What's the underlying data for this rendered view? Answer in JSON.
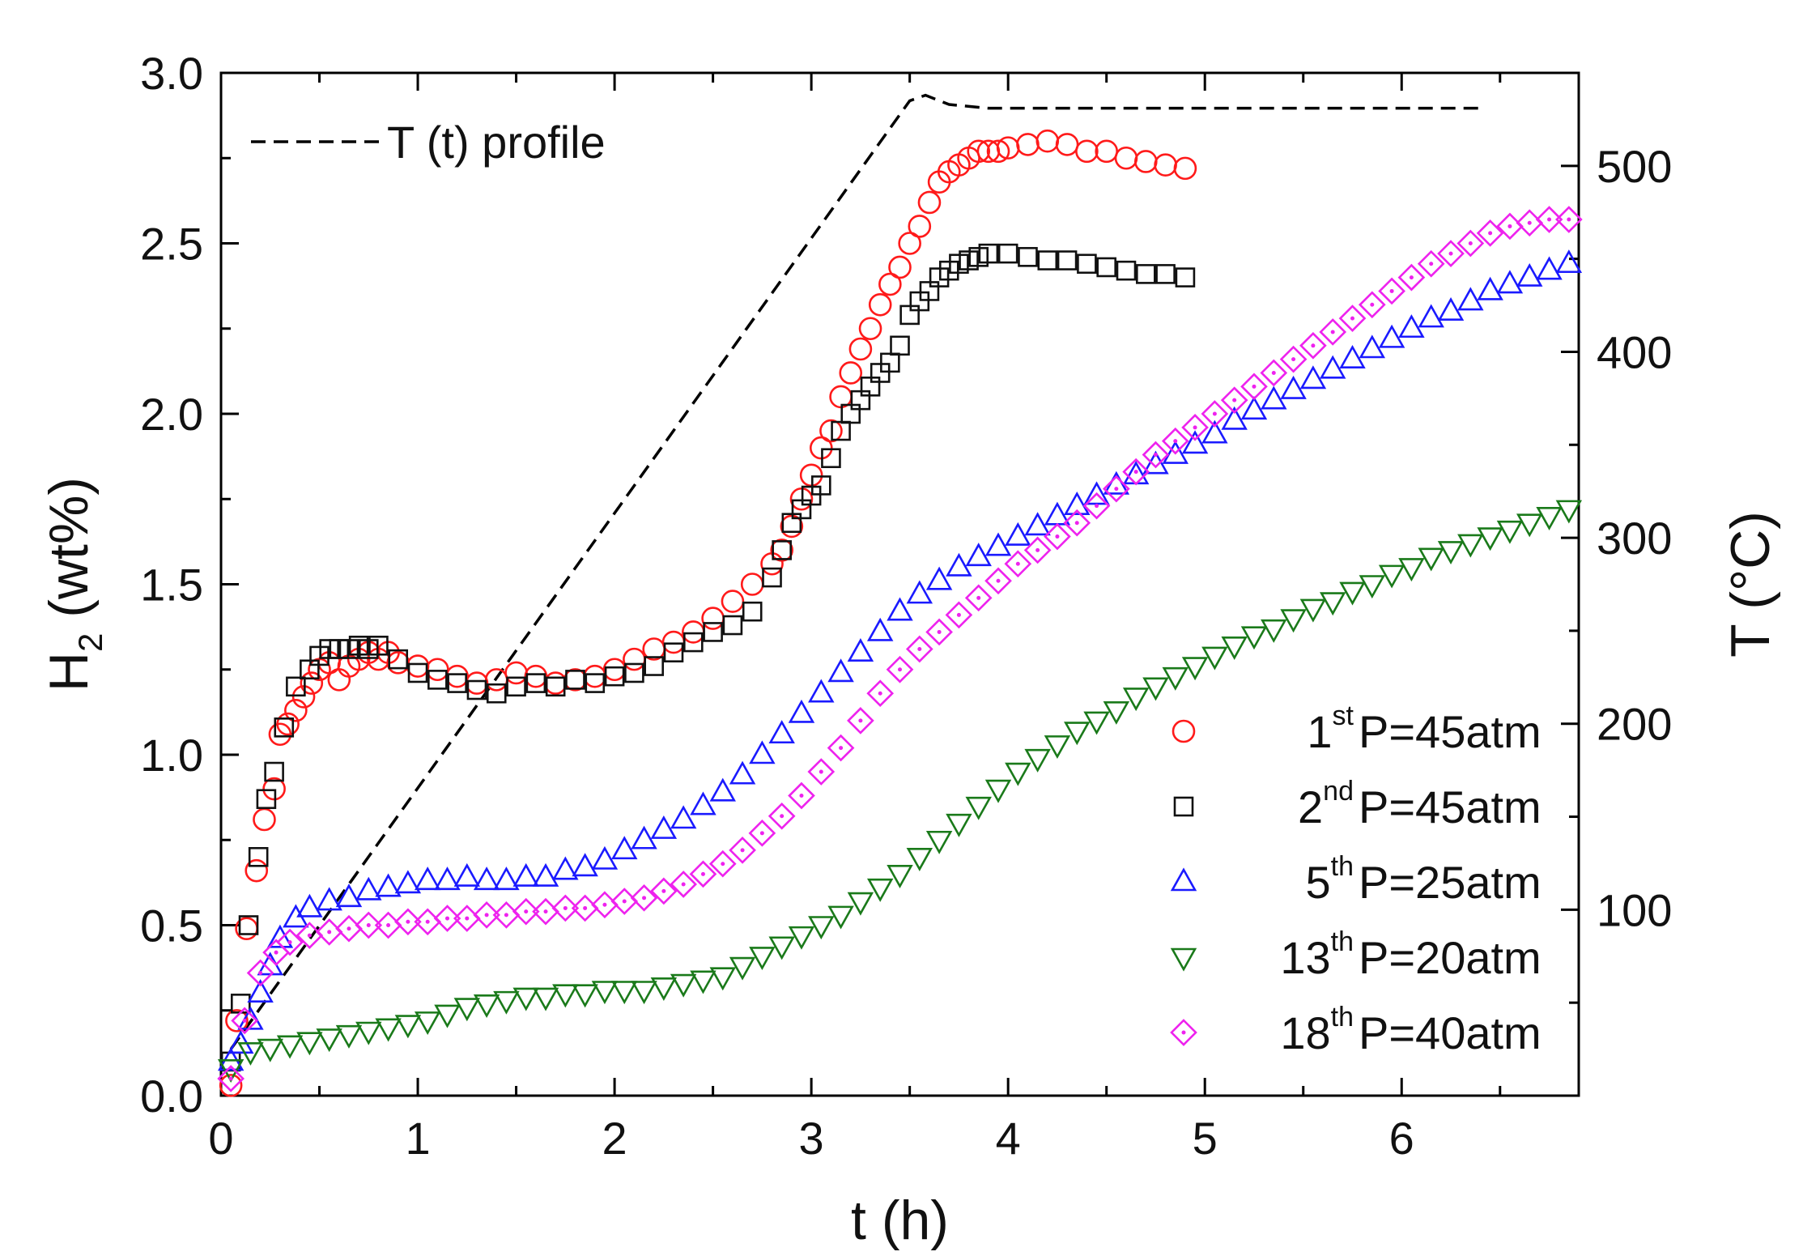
{
  "chart_data": {
    "type": "scatter",
    "title": "",
    "xlabel": "t (h)",
    "ylabel_main": "H",
    "ylabel_sub": "2",
    "ylabel_rest": " (wt%)",
    "y2label": "T (°C)",
    "xlim": [
      0,
      6.9
    ],
    "ylim": [
      0,
      3.0
    ],
    "y2lim": [
      0,
      550
    ],
    "x_ticks": [
      "0",
      "1",
      "2",
      "3",
      "4",
      "5",
      "6"
    ],
    "x_tick_values": [
      0,
      1,
      2,
      3,
      4,
      5,
      6
    ],
    "y_ticks": [
      "0.0",
      "0.5",
      "1.0",
      "1.5",
      "2.0",
      "2.5",
      "3.0"
    ],
    "y_tick_values": [
      0,
      0.5,
      1.0,
      1.5,
      2.0,
      2.5,
      3.0
    ],
    "y2_ticks": [
      "100",
      "200",
      "300",
      "400",
      "500"
    ],
    "y2_tick_values": [
      100,
      200,
      300,
      400,
      500
    ],
    "legend_position": "bottom-right",
    "temperature_profile": {
      "label": "T (t) profile",
      "axis": "right",
      "color": "#000000",
      "x": [
        0.05,
        3.5,
        3.58,
        3.7,
        3.9,
        4.5,
        5.5,
        6.4
      ],
      "y": [
        25,
        535,
        538,
        533,
        531,
        531,
        531,
        531
      ]
    },
    "series": [
      {
        "name": "1st P=45atm",
        "cycle": "1",
        "suffix": "st",
        "pressure": "P=45atm",
        "marker": "circle",
        "color": "#ff1a1a",
        "x": [
          0.05,
          0.08,
          0.13,
          0.18,
          0.22,
          0.27,
          0.3,
          0.34,
          0.38,
          0.42,
          0.46,
          0.5,
          0.55,
          0.6,
          0.65,
          0.7,
          0.75,
          0.8,
          0.85,
          0.9,
          1.0,
          1.1,
          1.2,
          1.3,
          1.4,
          1.5,
          1.6,
          1.7,
          1.8,
          1.9,
          2.0,
          2.1,
          2.2,
          2.3,
          2.4,
          2.5,
          2.6,
          2.7,
          2.8,
          2.85,
          2.9,
          2.95,
          3.0,
          3.05,
          3.1,
          3.15,
          3.2,
          3.25,
          3.3,
          3.35,
          3.4,
          3.45,
          3.5,
          3.55,
          3.6,
          3.65,
          3.7,
          3.75,
          3.8,
          3.85,
          3.9,
          3.95,
          4.0,
          4.1,
          4.2,
          4.3,
          4.4,
          4.5,
          4.6,
          4.7,
          4.8,
          4.9
        ],
        "y": [
          0.03,
          0.22,
          0.49,
          0.66,
          0.81,
          0.9,
          1.06,
          1.09,
          1.13,
          1.17,
          1.21,
          1.25,
          1.27,
          1.22,
          1.26,
          1.28,
          1.3,
          1.28,
          1.3,
          1.27,
          1.26,
          1.25,
          1.23,
          1.21,
          1.22,
          1.24,
          1.23,
          1.21,
          1.22,
          1.23,
          1.25,
          1.28,
          1.31,
          1.33,
          1.36,
          1.4,
          1.45,
          1.5,
          1.56,
          1.6,
          1.67,
          1.75,
          1.82,
          1.9,
          1.95,
          2.05,
          2.12,
          2.19,
          2.25,
          2.32,
          2.38,
          2.43,
          2.5,
          2.55,
          2.62,
          2.68,
          2.71,
          2.73,
          2.75,
          2.77,
          2.77,
          2.77,
          2.78,
          2.79,
          2.8,
          2.79,
          2.77,
          2.77,
          2.75,
          2.74,
          2.73,
          2.72
        ]
      },
      {
        "name": "2nd P=45atm",
        "cycle": "2",
        "suffix": "nd",
        "pressure": "P=45atm",
        "marker": "square",
        "color": "#111111",
        "x": [
          0.05,
          0.1,
          0.14,
          0.19,
          0.23,
          0.27,
          0.32,
          0.38,
          0.45,
          0.5,
          0.55,
          0.6,
          0.65,
          0.7,
          0.75,
          0.8,
          0.9,
          1.0,
          1.1,
          1.2,
          1.3,
          1.4,
          1.5,
          1.6,
          1.7,
          1.8,
          1.9,
          2.0,
          2.1,
          2.2,
          2.3,
          2.4,
          2.5,
          2.6,
          2.7,
          2.8,
          2.85,
          2.9,
          2.95,
          3.0,
          3.05,
          3.1,
          3.15,
          3.2,
          3.25,
          3.3,
          3.35,
          3.4,
          3.45,
          3.5,
          3.55,
          3.6,
          3.65,
          3.7,
          3.75,
          3.8,
          3.85,
          3.9,
          4.0,
          4.1,
          4.2,
          4.3,
          4.4,
          4.5,
          4.6,
          4.7,
          4.8,
          4.9
        ],
        "y": [
          0.1,
          0.27,
          0.5,
          0.7,
          0.87,
          0.95,
          1.08,
          1.2,
          1.25,
          1.29,
          1.31,
          1.31,
          1.31,
          1.32,
          1.31,
          1.32,
          1.28,
          1.24,
          1.22,
          1.21,
          1.19,
          1.18,
          1.2,
          1.21,
          1.2,
          1.22,
          1.21,
          1.23,
          1.24,
          1.26,
          1.3,
          1.33,
          1.36,
          1.38,
          1.42,
          1.52,
          1.6,
          1.68,
          1.72,
          1.76,
          1.79,
          1.87,
          1.95,
          2.0,
          2.04,
          2.08,
          2.12,
          2.15,
          2.2,
          2.29,
          2.33,
          2.36,
          2.4,
          2.42,
          2.44,
          2.45,
          2.46,
          2.47,
          2.47,
          2.46,
          2.45,
          2.45,
          2.44,
          2.43,
          2.42,
          2.41,
          2.41,
          2.4
        ]
      },
      {
        "name": "5th P=25atm",
        "cycle": "5",
        "suffix": "th",
        "pressure": "P=25atm",
        "marker": "triangle-up",
        "color": "#1a1aff",
        "x": [
          0.05,
          0.1,
          0.15,
          0.2,
          0.25,
          0.3,
          0.38,
          0.45,
          0.55,
          0.65,
          0.75,
          0.85,
          0.95,
          1.05,
          1.15,
          1.25,
          1.35,
          1.45,
          1.55,
          1.65,
          1.75,
          1.85,
          1.95,
          2.05,
          2.15,
          2.25,
          2.35,
          2.45,
          2.55,
          2.65,
          2.75,
          2.85,
          2.95,
          3.05,
          3.15,
          3.25,
          3.35,
          3.45,
          3.55,
          3.65,
          3.75,
          3.85,
          3.95,
          4.05,
          4.15,
          4.25,
          4.35,
          4.45,
          4.55,
          4.65,
          4.75,
          4.85,
          4.95,
          5.05,
          5.15,
          5.25,
          5.35,
          5.45,
          5.55,
          5.65,
          5.75,
          5.85,
          5.95,
          6.05,
          6.15,
          6.25,
          6.35,
          6.45,
          6.55,
          6.65,
          6.75,
          6.85
        ],
        "y": [
          0.1,
          0.15,
          0.22,
          0.3,
          0.38,
          0.46,
          0.52,
          0.55,
          0.57,
          0.58,
          0.6,
          0.61,
          0.62,
          0.63,
          0.63,
          0.64,
          0.63,
          0.63,
          0.64,
          0.64,
          0.66,
          0.67,
          0.69,
          0.72,
          0.75,
          0.78,
          0.81,
          0.85,
          0.89,
          0.94,
          1.0,
          1.06,
          1.12,
          1.18,
          1.24,
          1.3,
          1.36,
          1.42,
          1.47,
          1.51,
          1.55,
          1.58,
          1.61,
          1.64,
          1.67,
          1.7,
          1.73,
          1.76,
          1.79,
          1.82,
          1.85,
          1.88,
          1.91,
          1.94,
          1.98,
          2.01,
          2.04,
          2.07,
          2.1,
          2.13,
          2.16,
          2.19,
          2.22,
          2.25,
          2.28,
          2.3,
          2.33,
          2.36,
          2.38,
          2.4,
          2.42,
          2.44
        ]
      },
      {
        "name": "13th P=20atm",
        "cycle": "13",
        "suffix": "th",
        "pressure": "P=20atm",
        "marker": "triangle-down",
        "color": "#1a7a1a",
        "x": [
          0.05,
          0.15,
          0.25,
          0.35,
          0.45,
          0.55,
          0.65,
          0.75,
          0.85,
          0.95,
          1.05,
          1.15,
          1.25,
          1.35,
          1.45,
          1.55,
          1.65,
          1.75,
          1.85,
          1.95,
          2.05,
          2.15,
          2.25,
          2.35,
          2.45,
          2.55,
          2.65,
          2.75,
          2.85,
          2.95,
          3.05,
          3.15,
          3.25,
          3.35,
          3.45,
          3.55,
          3.65,
          3.75,
          3.85,
          3.95,
          4.05,
          4.15,
          4.25,
          4.35,
          4.45,
          4.55,
          4.65,
          4.75,
          4.85,
          4.95,
          5.05,
          5.15,
          5.25,
          5.35,
          5.45,
          5.55,
          5.65,
          5.75,
          5.85,
          5.95,
          6.05,
          6.15,
          6.25,
          6.35,
          6.45,
          6.55,
          6.65,
          6.75,
          6.85
        ],
        "y": [
          0.08,
          0.13,
          0.14,
          0.15,
          0.16,
          0.17,
          0.18,
          0.19,
          0.2,
          0.21,
          0.22,
          0.24,
          0.26,
          0.27,
          0.28,
          0.29,
          0.29,
          0.3,
          0.3,
          0.31,
          0.31,
          0.31,
          0.32,
          0.33,
          0.34,
          0.35,
          0.38,
          0.41,
          0.44,
          0.47,
          0.5,
          0.53,
          0.57,
          0.61,
          0.65,
          0.7,
          0.75,
          0.8,
          0.85,
          0.9,
          0.95,
          0.99,
          1.03,
          1.07,
          1.1,
          1.13,
          1.17,
          1.2,
          1.23,
          1.26,
          1.29,
          1.32,
          1.35,
          1.37,
          1.4,
          1.43,
          1.45,
          1.48,
          1.5,
          1.53,
          1.55,
          1.58,
          1.6,
          1.62,
          1.64,
          1.66,
          1.68,
          1.7,
          1.72
        ]
      },
      {
        "name": "18th P=40atm",
        "cycle": "18",
        "suffix": "th",
        "pressure": "P=40atm",
        "marker": "diamond",
        "color": "#ee22ee",
        "x": [
          0.05,
          0.12,
          0.2,
          0.28,
          0.35,
          0.45,
          0.55,
          0.65,
          0.75,
          0.85,
          0.95,
          1.05,
          1.15,
          1.25,
          1.35,
          1.45,
          1.55,
          1.65,
          1.75,
          1.85,
          1.95,
          2.05,
          2.15,
          2.25,
          2.35,
          2.45,
          2.55,
          2.65,
          2.75,
          2.85,
          2.95,
          3.05,
          3.15,
          3.25,
          3.35,
          3.45,
          3.55,
          3.65,
          3.75,
          3.85,
          3.95,
          4.05,
          4.15,
          4.25,
          4.35,
          4.45,
          4.55,
          4.65,
          4.75,
          4.85,
          4.95,
          5.05,
          5.15,
          5.25,
          5.35,
          5.45,
          5.55,
          5.65,
          5.75,
          5.85,
          5.95,
          6.05,
          6.15,
          6.25,
          6.35,
          6.45,
          6.55,
          6.65,
          6.75,
          6.85
        ],
        "y": [
          0.05,
          0.22,
          0.36,
          0.42,
          0.45,
          0.47,
          0.48,
          0.49,
          0.5,
          0.5,
          0.51,
          0.51,
          0.52,
          0.52,
          0.53,
          0.53,
          0.54,
          0.54,
          0.55,
          0.55,
          0.56,
          0.57,
          0.58,
          0.6,
          0.62,
          0.65,
          0.68,
          0.72,
          0.77,
          0.82,
          0.88,
          0.95,
          1.02,
          1.1,
          1.18,
          1.25,
          1.31,
          1.36,
          1.41,
          1.46,
          1.51,
          1.56,
          1.6,
          1.64,
          1.68,
          1.73,
          1.78,
          1.83,
          1.88,
          1.92,
          1.96,
          2.0,
          2.04,
          2.08,
          2.12,
          2.16,
          2.2,
          2.24,
          2.28,
          2.32,
          2.36,
          2.4,
          2.44,
          2.47,
          2.5,
          2.53,
          2.55,
          2.56,
          2.57,
          2.57
        ]
      }
    ]
  }
}
